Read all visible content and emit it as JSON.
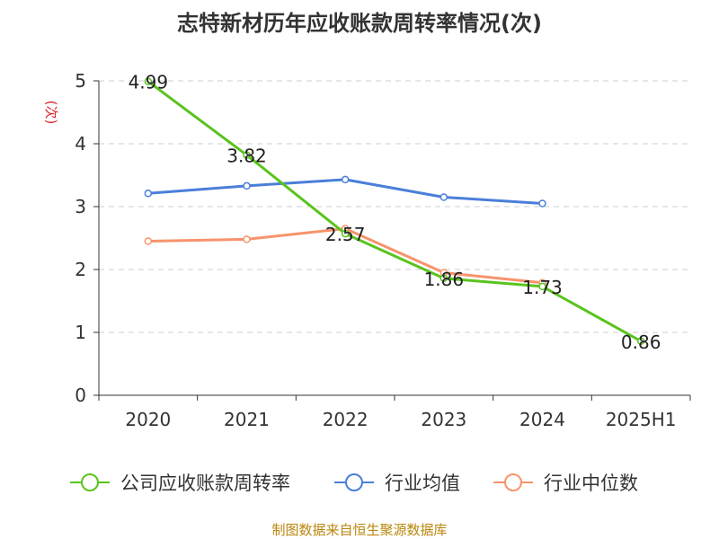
{
  "chart_data": {
    "type": "line",
    "title": "志特新材历年应收账款周转率情况(次)",
    "ylabel": "(次)",
    "xlabel": "",
    "categories": [
      "2020",
      "2021",
      "2022",
      "2023",
      "2024",
      "2025H1"
    ],
    "ylim": [
      0,
      5
    ],
    "yticks": [
      0,
      1,
      2,
      3,
      4,
      5
    ],
    "grid": true,
    "legend_position": "bottom",
    "series": [
      {
        "name": "公司应收账款周转率",
        "color": "#5ac31e",
        "values": [
          4.99,
          3.82,
          2.57,
          1.86,
          1.73,
          0.86
        ],
        "labels": [
          "4.99",
          "3.82",
          "2.57",
          "1.86",
          "1.73",
          "0.86"
        ]
      },
      {
        "name": "行业均值",
        "color": "#4a7fd9",
        "values": [
          3.21,
          3.33,
          3.43,
          3.15,
          3.05,
          null
        ]
      },
      {
        "name": "行业中位数",
        "color": "#f7936b",
        "values": [
          2.45,
          2.48,
          2.65,
          1.95,
          1.79,
          null
        ]
      }
    ]
  },
  "source": "制图数据来自恒生聚源数据库",
  "colors": {
    "axis": "#333333",
    "grid": "#cccccc",
    "ylabel": "#d9262a",
    "source": "#b8860b"
  }
}
